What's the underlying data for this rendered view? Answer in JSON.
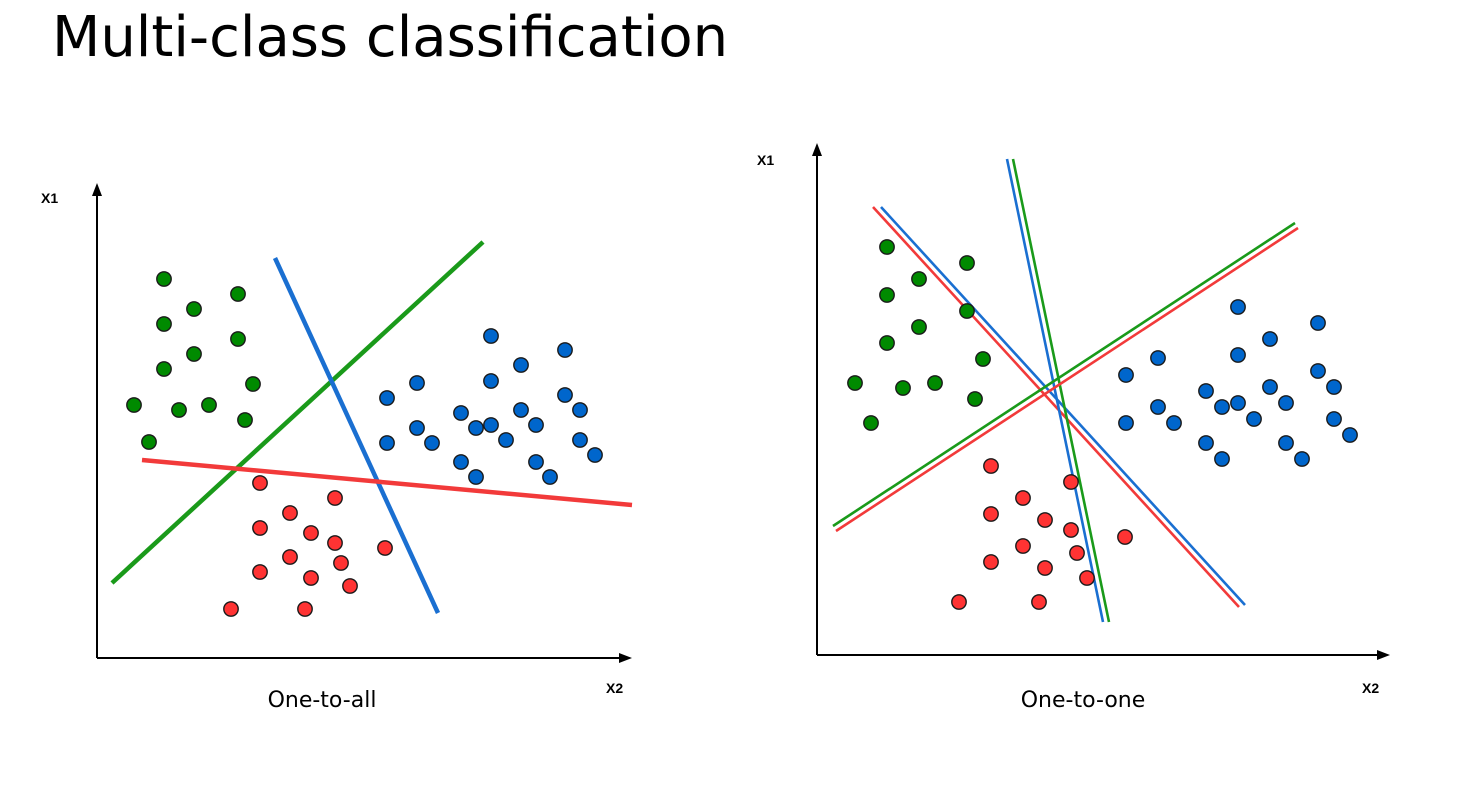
{
  "slide": {
    "title": "Multi-class classification"
  },
  "colors": {
    "green": "#008a00",
    "blue": "#0066cc",
    "red": "#ff3333",
    "green_line": "#1a9a1a",
    "blue_line": "#1a6fd1",
    "red_line": "#f23a3a",
    "axis": "#000000"
  },
  "panels": [
    {
      "caption": "One-to-all",
      "x_axis_label": "X2",
      "y_axis_label": "X1",
      "classes": {
        "green": [
          [
            164,
            279
          ],
          [
            194,
            309
          ],
          [
            238,
            294
          ],
          [
            164,
            324
          ],
          [
            194,
            354
          ],
          [
            238,
            339
          ],
          [
            164,
            369
          ],
          [
            253,
            384
          ],
          [
            134,
            405
          ],
          [
            179,
            410
          ],
          [
            209,
            405
          ],
          [
            245,
            420
          ],
          [
            149,
            442
          ]
        ],
        "blue": [
          [
            491,
            336
          ],
          [
            521,
            365
          ],
          [
            565,
            350
          ],
          [
            491,
            381
          ],
          [
            387,
            398
          ],
          [
            417,
            383
          ],
          [
            565,
            395
          ],
          [
            461,
            413
          ],
          [
            491,
            425
          ],
          [
            521,
            410
          ],
          [
            580,
            410
          ],
          [
            417,
            428
          ],
          [
            476,
            428
          ],
          [
            387,
            443
          ],
          [
            432,
            443
          ],
          [
            506,
            440
          ],
          [
            536,
            425
          ],
          [
            580,
            440
          ],
          [
            461,
            462
          ],
          [
            536,
            462
          ],
          [
            595,
            455
          ],
          [
            476,
            477
          ],
          [
            550,
            477
          ]
        ],
        "red": [
          [
            260,
            483
          ],
          [
            335,
            498
          ],
          [
            290,
            513
          ],
          [
            260,
            528
          ],
          [
            311,
            533
          ],
          [
            335,
            543
          ],
          [
            385,
            548
          ],
          [
            290,
            557
          ],
          [
            341,
            563
          ],
          [
            260,
            572
          ],
          [
            311,
            578
          ],
          [
            350,
            586
          ],
          [
            231,
            609
          ],
          [
            305,
            609
          ]
        ]
      },
      "lines": [
        {
          "color": "green",
          "from": [
            112,
            583
          ],
          "to": [
            483,
            242
          ]
        },
        {
          "color": "blue",
          "from": [
            275,
            258
          ],
          "to": [
            438,
            613
          ]
        },
        {
          "color": "red",
          "from": [
            142,
            460
          ],
          "to": [
            632,
            505
          ]
        }
      ]
    },
    {
      "caption": "One-to-one",
      "x_axis_label": "X2",
      "y_axis_label": "X1",
      "classes": {
        "green": [
          [
            887,
            247
          ],
          [
            967,
            263
          ],
          [
            919,
            279
          ],
          [
            887,
            295
          ],
          [
            967,
            311
          ],
          [
            919,
            327
          ],
          [
            887,
            343
          ],
          [
            983,
            359
          ],
          [
            855,
            383
          ],
          [
            903,
            388
          ],
          [
            935,
            383
          ],
          [
            975,
            399
          ],
          [
            871,
            423
          ]
        ],
        "blue": [
          [
            1238,
            307
          ],
          [
            1318,
            323
          ],
          [
            1270,
            339
          ],
          [
            1158,
            358
          ],
          [
            1238,
            355
          ],
          [
            1126,
            375
          ],
          [
            1318,
            371
          ],
          [
            1206,
            391
          ],
          [
            1238,
            403
          ],
          [
            1270,
            387
          ],
          [
            1334,
            387
          ],
          [
            1158,
            407
          ],
          [
            1222,
            407
          ],
          [
            1286,
            403
          ],
          [
            1126,
            423
          ],
          [
            1174,
            423
          ],
          [
            1254,
            419
          ],
          [
            1334,
            419
          ],
          [
            1206,
            443
          ],
          [
            1286,
            443
          ],
          [
            1350,
            435
          ],
          [
            1222,
            459
          ],
          [
            1302,
            459
          ]
        ],
        "red": [
          [
            991,
            466
          ],
          [
            1071,
            482
          ],
          [
            1023,
            498
          ],
          [
            991,
            514
          ],
          [
            1045,
            520
          ],
          [
            1071,
            530
          ],
          [
            1125,
            537
          ],
          [
            1023,
            546
          ],
          [
            1077,
            553
          ],
          [
            991,
            562
          ],
          [
            1045,
            568
          ],
          [
            1087,
            578
          ],
          [
            959,
            602
          ],
          [
            1039,
            602
          ]
        ]
      },
      "lines": [
        {
          "color": "blue",
          "from": [
            881,
            207
          ],
          "to": [
            1245,
            605
          ]
        },
        {
          "color": "red",
          "from": [
            873,
            207
          ],
          "to": [
            1239,
            607
          ]
        },
        {
          "color": "blue",
          "from": [
            1007,
            159
          ],
          "to": [
            1103,
            622
          ]
        },
        {
          "color": "green",
          "from": [
            1013,
            159
          ],
          "to": [
            1109,
            622
          ]
        },
        {
          "color": "green",
          "from": [
            833,
            526
          ],
          "to": [
            1295,
            223
          ]
        },
        {
          "color": "red",
          "from": [
            836,
            531
          ],
          "to": [
            1298,
            228
          ]
        }
      ]
    }
  ]
}
